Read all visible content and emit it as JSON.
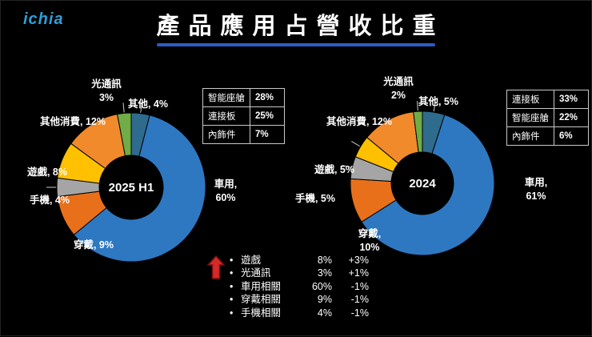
{
  "logo": "ichia",
  "title": "產品應用占營收比重",
  "colors": {
    "background": "#000000",
    "title_underline": "#2A5CC8",
    "logo_blue": "#2D9FD8",
    "text": "#FFFFFF",
    "table_border": "#C8C8C8",
    "arrow_red": "#D62929"
  },
  "chart_data": [
    {
      "type": "pie",
      "donut": true,
      "center_label": "2025 H1",
      "start_angle_deg": 0,
      "direction": "clockwise",
      "unit": "%",
      "slices": [
        {
          "label": "其他",
          "display": "其他, 4%",
          "value": 4,
          "color": "#2E6B8C"
        },
        {
          "label": "車用",
          "display": "車用, 60%",
          "value": 60,
          "color": "#2E78C2"
        },
        {
          "label": "穿戴",
          "display": "穿戴, 9%",
          "value": 9,
          "color": "#E8701A"
        },
        {
          "label": "手機",
          "display": "手機, 4%",
          "value": 4,
          "color": "#A5A5A5"
        },
        {
          "label": "遊戲",
          "display": "遊戲, 8%",
          "value": 8,
          "color": "#FFC000"
        },
        {
          "label": "其他消費",
          "display": "其他消費, 12%",
          "value": 12,
          "color": "#F18A2B"
        },
        {
          "label": "光通訊",
          "display": "光通訊 3%",
          "value": 3,
          "color": "#70AD47"
        }
      ],
      "side_table": [
        {
          "label": "智能座艙",
          "value": "28%"
        },
        {
          "label": "連接板",
          "value": "25%"
        },
        {
          "label": "內飾件",
          "value": "7%"
        }
      ]
    },
    {
      "type": "pie",
      "donut": true,
      "center_label": "2024",
      "start_angle_deg": 0,
      "direction": "clockwise",
      "unit": "%",
      "slices": [
        {
          "label": "其他",
          "display": "其他, 5%",
          "value": 5,
          "color": "#2E6B8C"
        },
        {
          "label": "車用",
          "display": "車用, 61%",
          "value": 61,
          "color": "#2E78C2"
        },
        {
          "label": "穿戴",
          "display": "穿戴, 10%",
          "value": 10,
          "color": "#E8701A"
        },
        {
          "label": "手機",
          "display": "手機, 5%",
          "value": 5,
          "color": "#A5A5A5"
        },
        {
          "label": "遊戲",
          "display": "遊戲, 5%",
          "value": 5,
          "color": "#FFC000"
        },
        {
          "label": "其他消費",
          "display": "其他消費, 12%",
          "value": 12,
          "color": "#F18A2B"
        },
        {
          "label": "光通訊",
          "display": "光通訊 2%",
          "value": 2,
          "color": "#70AD47"
        }
      ],
      "side_table": [
        {
          "label": "連接板",
          "value": "33%"
        },
        {
          "label": "智能座艙",
          "value": "22%"
        },
        {
          "label": "內飾件",
          "value": "6%"
        }
      ]
    }
  ],
  "summary": {
    "bullet": "•",
    "rows": [
      {
        "name": "遊戲",
        "pct": "8%",
        "change": "+3%"
      },
      {
        "name": "光通訊",
        "pct": "3%",
        "change": "+1%"
      },
      {
        "name": "車用相關",
        "pct": "60%",
        "change": "-1%"
      },
      {
        "name": "穿戴相關",
        "pct": "9%",
        "change": "-1%"
      },
      {
        "name": "手機相關",
        "pct": "4%",
        "change": "-1%"
      }
    ]
  }
}
